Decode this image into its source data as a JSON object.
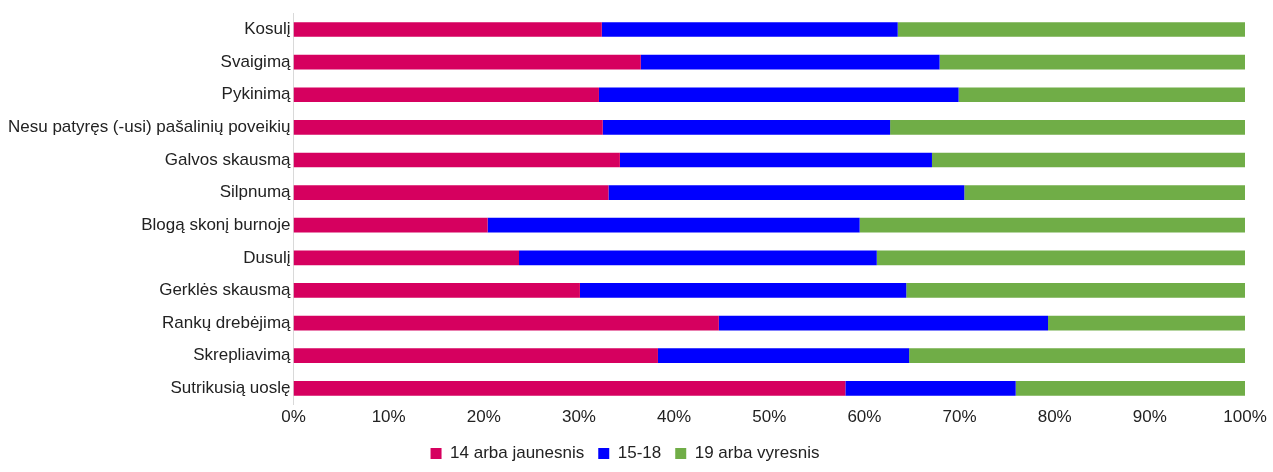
{
  "chart_data": {
    "type": "bar",
    "orientation": "horizontal",
    "stacked": true,
    "legend": "bottom",
    "grid": false,
    "categories": [
      "Kosulį",
      "Svaigimą",
      "Pykinimą",
      "Nesu patyręs (-usi) pašalinių poveikių",
      "Galvos skausmą",
      "Silpnumą",
      "Blogą skonį burnoje",
      "Dusulį",
      "Gerklės skausmą",
      "Rankų drebėjimą",
      "Skrepliavimą",
      "Sutrikusią uoslę"
    ],
    "series": [
      {
        "name": "14 arba jaunesnis",
        "color": "#d6005f",
        "values": [
          32.4,
          36.5,
          32.1,
          32.5,
          34.3,
          33.1,
          20.4,
          23.7,
          30.1,
          44.7,
          38.3,
          58.0
        ]
      },
      {
        "name": "15-18",
        "color": "#0000ff",
        "values": [
          31.1,
          31.4,
          37.8,
          30.2,
          32.8,
          37.4,
          39.1,
          37.6,
          34.3,
          34.6,
          26.4,
          17.9
        ]
      },
      {
        "name": "19 arba vyresnis",
        "color": "#70ad47",
        "values": [
          36.5,
          32.1,
          30.1,
          37.3,
          32.9,
          29.5,
          40.5,
          38.7,
          35.6,
          20.7,
          35.3,
          24.1
        ]
      }
    ],
    "xlim": [
      0,
      100
    ],
    "xticks": [
      {
        "value": 0,
        "label": "0%"
      },
      {
        "value": 10,
        "label": "10%"
      },
      {
        "value": 20,
        "label": "20%"
      },
      {
        "value": 30,
        "label": "30%"
      },
      {
        "value": 40,
        "label": "40%"
      },
      {
        "value": 50,
        "label": "50%"
      },
      {
        "value": 60,
        "label": "60%"
      },
      {
        "value": 70,
        "label": "70%"
      },
      {
        "value": 80,
        "label": "80%"
      },
      {
        "value": 90,
        "label": "90%"
      },
      {
        "value": 100,
        "label": "100%"
      }
    ]
  }
}
